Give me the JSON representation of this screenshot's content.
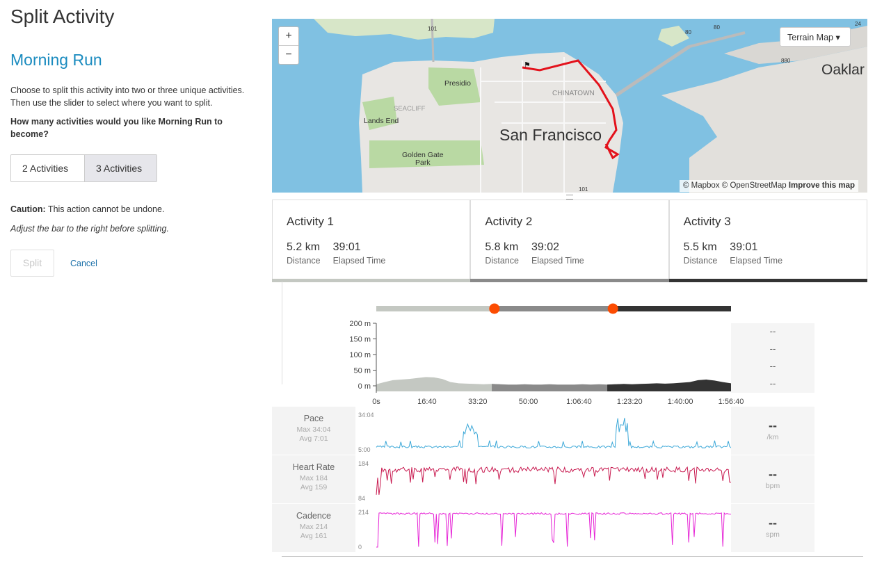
{
  "page": {
    "title": "Split Activity",
    "activity_name": "Morning Run",
    "description": "Choose to split this activity into two or three unique activities. Then use the slider to select where you want to split.",
    "question": "How many activities would you like Morning Run to become?",
    "options": [
      "2 Activities",
      "3 Activities"
    ],
    "selected_option": "3 Activities",
    "caution_label": "Caution:",
    "caution_text": " This action cannot be undone.",
    "adjust_hint": "Adjust the bar to the right before splitting.",
    "split_label": "Split",
    "cancel_label": "Cancel"
  },
  "map": {
    "zoom_in": "+",
    "zoom_out": "−",
    "style_label": "Terrain Map",
    "attribution_prefix": "© Mapbox © OpenStreetMap ",
    "attribution_link": "Improve this map",
    "labels": {
      "city": "San Francisco",
      "oakland": "Oaklar",
      "presidio": "Presidio",
      "lands_end": "Lands End",
      "golden_gate": "Golden Gate",
      "park": "Park",
      "chinatown": "CHINATOWN",
      "seacliff": "SEACLIFF",
      "hwy_101a": "101",
      "hwy_101b": "101",
      "hwy_80": "80",
      "hwy_80b": "80",
      "hwy_880": "880",
      "hwy_24": "24"
    }
  },
  "activities": [
    {
      "title": "Activity 1",
      "distance": "5.2 km",
      "distance_label": "Distance",
      "time": "39:01",
      "time_label": "Elapsed Time",
      "color": "#c4c8c2"
    },
    {
      "title": "Activity 2",
      "distance": "5.8 km",
      "distance_label": "Distance",
      "time": "39:02",
      "time_label": "Elapsed Time",
      "color": "#8a8a8a"
    },
    {
      "title": "Activity 3",
      "distance": "5.5 km",
      "distance_label": "Distance",
      "time": "39:01",
      "time_label": "Elapsed Time",
      "color": "#333333"
    }
  ],
  "slider": {
    "split_points": [
      0.333,
      0.667
    ],
    "handle_color": "#fc4c02"
  },
  "elevation": {
    "y_ticks": [
      "200 m",
      "150 m",
      "100 m",
      "50 m",
      "0 m"
    ],
    "x_ticks": [
      "0s",
      "16:40",
      "33:20",
      "50:00",
      "1:06:40",
      "1:23:20",
      "1:40:00",
      "1:56:40"
    ],
    "right_values": [
      "--",
      "--",
      "--",
      "--"
    ]
  },
  "metrics": [
    {
      "name": "Pace",
      "max": "Max 34:04",
      "avg": "Avg 7:01",
      "top": "34:04",
      "bottom": "5:00",
      "value": "--",
      "unit": "/km",
      "color": "#3ca8d8"
    },
    {
      "name": "Heart Rate",
      "max": "Max 184",
      "avg": "Avg 159",
      "top": "184",
      "bottom": "84",
      "value": "--",
      "unit": "bpm",
      "color": "#c8194f"
    },
    {
      "name": "Cadence",
      "max": "Max 214",
      "avg": "Avg 161",
      "top": "214",
      "bottom": "0",
      "value": "--",
      "unit": "spm",
      "color": "#e624d6"
    }
  ]
}
